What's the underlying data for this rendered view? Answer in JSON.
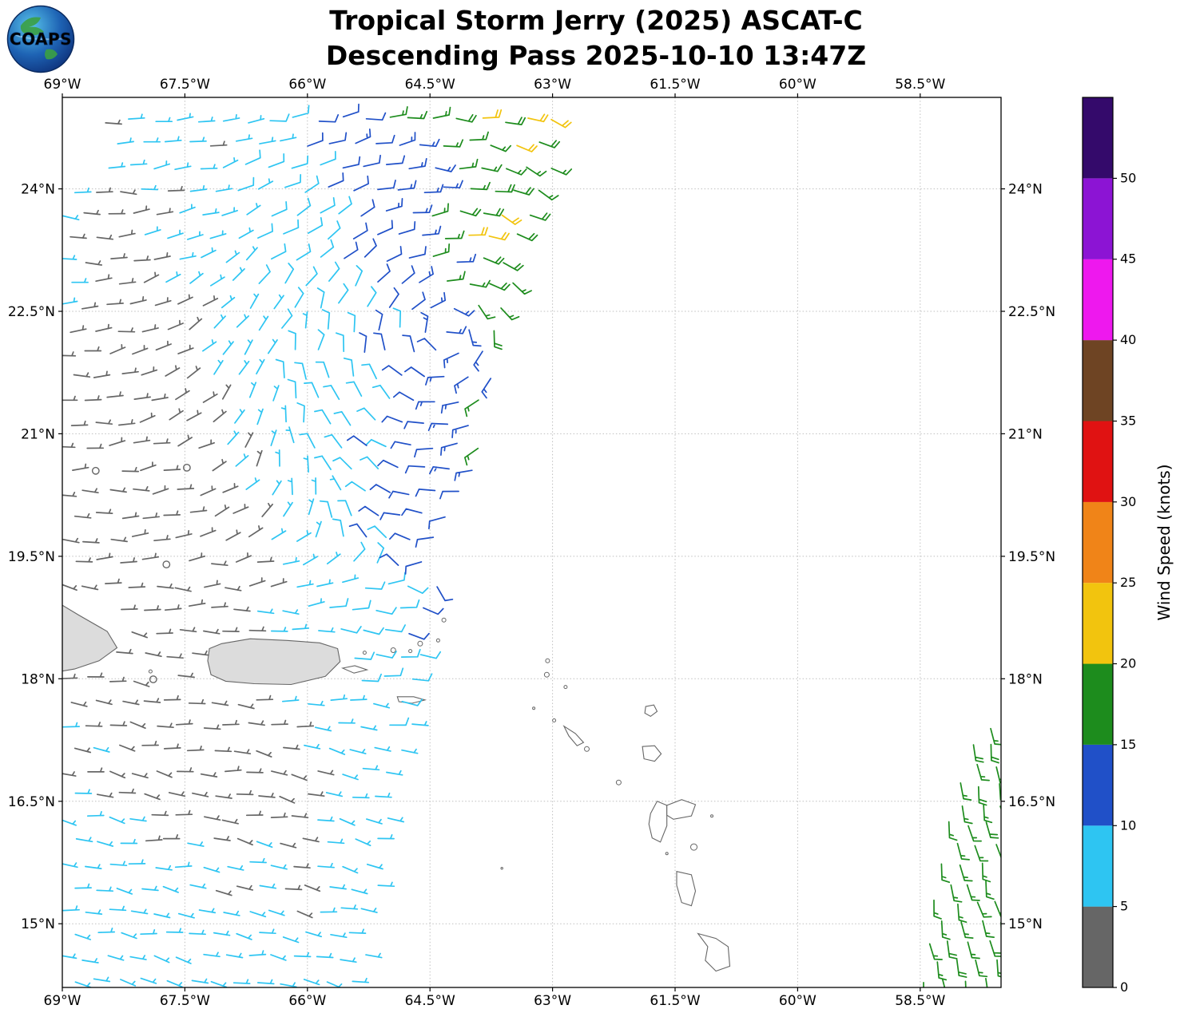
{
  "title": {
    "line1": "Tropical Storm Jerry (2025) ASCAT-C",
    "line2": "Descending Pass 2025-10-10 13:47Z"
  },
  "logo": {
    "text": "COAPS"
  },
  "axes": {
    "xlim": [
      -69.0,
      -57.51
    ],
    "ylim": [
      14.22,
      25.12
    ],
    "x_ticks": [
      {
        "value": -69.0,
        "label": "69°W"
      },
      {
        "value": -67.5,
        "label": "67.5°W"
      },
      {
        "value": -66.0,
        "label": "66°W"
      },
      {
        "value": -64.5,
        "label": "64.5°W"
      },
      {
        "value": -63.0,
        "label": "63°W"
      },
      {
        "value": -61.5,
        "label": "61.5°W"
      },
      {
        "value": -60.0,
        "label": "60°W"
      },
      {
        "value": -58.5,
        "label": "58.5°W"
      }
    ],
    "y_ticks": [
      {
        "value": 24.0,
        "label": "24°N"
      },
      {
        "value": 22.5,
        "label": "22.5°N"
      },
      {
        "value": 21.0,
        "label": "21°N"
      },
      {
        "value": 19.5,
        "label": "19.5°N"
      },
      {
        "value": 18.0,
        "label": "18°N"
      },
      {
        "value": 16.5,
        "label": "16.5°N"
      },
      {
        "value": 15.0,
        "label": "15°N"
      }
    ]
  },
  "colorbar": {
    "label": "Wind Speed (knots)",
    "min": 0,
    "max": 55,
    "ticks": [
      0,
      5,
      10,
      15,
      20,
      25,
      30,
      35,
      40,
      45,
      50
    ],
    "segments": [
      {
        "from": 0,
        "to": 5,
        "color": "#666666"
      },
      {
        "from": 5,
        "to": 10,
        "color": "#2ec5f2"
      },
      {
        "from": 10,
        "to": 15,
        "color": "#2050c8"
      },
      {
        "from": 15,
        "to": 20,
        "color": "#1d8c1d"
      },
      {
        "from": 20,
        "to": 25,
        "color": "#f2c40e"
      },
      {
        "from": 25,
        "to": 30,
        "color": "#f08418"
      },
      {
        "from": 30,
        "to": 35,
        "color": "#e01212"
      },
      {
        "from": 35,
        "to": 40,
        "color": "#6e4423"
      },
      {
        "from": 40,
        "to": 45,
        "color": "#ee18ee"
      },
      {
        "from": 45,
        "to": 50,
        "color": "#8c14d4"
      },
      {
        "from": 50,
        "to": 55,
        "color": "#340a6b"
      }
    ]
  },
  "chart_data": {
    "type": "wind_barb_map",
    "title": "Tropical Storm Jerry (2025) ASCAT-C — Descending Pass 2025-10-10 13:47Z",
    "x": "longitude_deg_east",
    "y": "latitude_deg_north",
    "wind_speed_units": "knots",
    "calm_symbol": "circle_below_2.5_knots",
    "grid": true,
    "legend_position": "right-colorbar",
    "swaths": [
      {
        "name": "main-swath",
        "grid_deg": 0.285,
        "lat_min": 14.3,
        "lat_max": 25.05,
        "left_edge": [
          [
            14.22,
            -69.1
          ],
          [
            23.8,
            -69.1
          ],
          [
            24.35,
            -68.6
          ],
          [
            25.1,
            -68.4
          ]
        ],
        "right_edge": [
          [
            14.22,
            -65.32
          ],
          [
            16.5,
            -64.95
          ],
          [
            18.0,
            -64.55
          ],
          [
            19.5,
            -64.3
          ],
          [
            21.0,
            -63.78
          ],
          [
            22.5,
            -63.5
          ],
          [
            24.0,
            -63.05
          ],
          [
            25.1,
            -62.9
          ]
        ],
        "flow": {
          "type": "cyclonic",
          "center": [
            -64.3,
            22.2
          ],
          "vortex_scale_deg": 3.5,
          "background_to": [
            -0.984,
            0.177
          ]
        },
        "speed_points": [
          [
            -68.6,
            24.8,
            3
          ],
          [
            -67.9,
            24.9,
            6
          ],
          [
            -67.1,
            24.6,
            4
          ],
          [
            -66.3,
            24.8,
            8
          ],
          [
            -65.6,
            24.8,
            12
          ],
          [
            -64.9,
            24.9,
            16
          ],
          [
            -64.2,
            24.9,
            20
          ],
          [
            -63.5,
            24.9,
            22
          ],
          [
            -63.0,
            24.8,
            22
          ],
          [
            -68.4,
            23.7,
            3
          ],
          [
            -67.6,
            23.8,
            4
          ],
          [
            -66.8,
            23.8,
            7
          ],
          [
            -66.0,
            23.7,
            8
          ],
          [
            -65.3,
            23.8,
            11
          ],
          [
            -64.6,
            23.6,
            15
          ],
          [
            -63.9,
            23.45,
            25
          ],
          [
            -63.3,
            23.6,
            21
          ],
          [
            -68.3,
            22.5,
            2
          ],
          [
            -67.4,
            22.5,
            4
          ],
          [
            -66.5,
            22.4,
            7
          ],
          [
            -65.7,
            22.5,
            8
          ],
          [
            -65.0,
            22.5,
            9
          ],
          [
            -64.3,
            22.4,
            13
          ],
          [
            -63.7,
            22.4,
            18
          ],
          [
            -63.2,
            22.5,
            21
          ],
          [
            -68.2,
            21.5,
            2
          ],
          [
            -67.3,
            21.4,
            2
          ],
          [
            -66.4,
            21.5,
            6
          ],
          [
            -65.6,
            21.5,
            8
          ],
          [
            -64.9,
            21.4,
            9
          ],
          [
            -64.2,
            21.5,
            14
          ],
          [
            -63.8,
            21.3,
            19
          ],
          [
            -68.5,
            20.5,
            2
          ],
          [
            -67.5,
            20.5,
            1
          ],
          [
            -66.6,
            20.5,
            4
          ],
          [
            -65.8,
            20.5,
            7
          ],
          [
            -65.1,
            20.4,
            10
          ],
          [
            -64.4,
            20.5,
            14
          ],
          [
            -63.95,
            20.7,
            16
          ],
          [
            -68.7,
            19.5,
            3
          ],
          [
            -67.7,
            19.5,
            1
          ],
          [
            -66.8,
            19.5,
            2
          ],
          [
            -65.9,
            19.5,
            6
          ],
          [
            -65.2,
            19.5,
            11
          ],
          [
            -64.6,
            19.6,
            13
          ],
          [
            -68.8,
            18.7,
            3
          ],
          [
            -67.8,
            18.7,
            2
          ],
          [
            -66.9,
            18.7,
            3
          ],
          [
            -66.1,
            18.7,
            5
          ],
          [
            -65.4,
            18.7,
            10
          ],
          [
            -64.8,
            18.7,
            12
          ],
          [
            -68.9,
            18.0,
            4
          ],
          [
            -67.9,
            18.0,
            2
          ],
          [
            -66.9,
            17.95,
            2
          ],
          [
            -65.4,
            18.1,
            9
          ],
          [
            -64.85,
            18.2,
            11
          ],
          [
            -68.9,
            17.3,
            5
          ],
          [
            -68.0,
            17.3,
            3
          ],
          [
            -67.1,
            17.2,
            3
          ],
          [
            -66.3,
            17.3,
            4
          ],
          [
            -65.6,
            17.3,
            6
          ],
          [
            -65.1,
            17.3,
            7
          ],
          [
            -68.9,
            16.4,
            6
          ],
          [
            -68.0,
            16.4,
            4
          ],
          [
            -67.1,
            16.4,
            3
          ],
          [
            -66.2,
            16.4,
            3
          ],
          [
            -65.5,
            16.5,
            5
          ],
          [
            -65.1,
            16.4,
            6
          ],
          [
            -68.8,
            15.5,
            7
          ],
          [
            -67.8,
            15.5,
            6
          ],
          [
            -66.9,
            15.4,
            5
          ],
          [
            -66.1,
            15.5,
            4
          ],
          [
            -65.4,
            15.5,
            6
          ],
          [
            -68.7,
            14.5,
            7
          ],
          [
            -67.7,
            14.6,
            7
          ],
          [
            -66.7,
            14.5,
            7
          ],
          [
            -65.8,
            14.5,
            7
          ],
          [
            -65.3,
            14.4,
            7
          ]
        ]
      },
      {
        "name": "east-swath-edge",
        "grid_deg": 0.24,
        "lat_min": 14.3,
        "lat_max": 17.6,
        "lon_max": -57.42,
        "left_edge": [
          [
            14.22,
            -58.45
          ],
          [
            15.0,
            -58.35
          ],
          [
            16.5,
            -58.1
          ],
          [
            17.6,
            -57.7
          ]
        ],
        "speed_kt": [
          15,
          18
        ],
        "flow": {
          "type": "uniform",
          "to": [
            -0.2,
            0.98
          ]
        }
      }
    ],
    "land_mask": [
      {
        "lon": [
          -67.3,
          -65.55
        ],
        "lat": [
          17.9,
          18.55
        ]
      },
      {
        "lon": [
          -69.3,
          -68.33
        ],
        "lat": [
          18.02,
          18.98
        ]
      }
    ],
    "islands": {
      "filled": [
        {
          "name": "hispaniola-east",
          "pts": [
            [
              -69.08,
              18.95
            ],
            [
              -68.8,
              18.78
            ],
            [
              -68.45,
              18.58
            ],
            [
              -68.33,
              18.38
            ],
            [
              -68.55,
              18.22
            ],
            [
              -68.85,
              18.12
            ],
            [
              -69.08,
              18.08
            ]
          ]
        },
        {
          "name": "puerto-rico",
          "pts": [
            [
              -67.2,
              18.37
            ],
            [
              -67.05,
              18.43
            ],
            [
              -66.7,
              18.49
            ],
            [
              -66.25,
              18.47
            ],
            [
              -65.85,
              18.44
            ],
            [
              -65.63,
              18.37
            ],
            [
              -65.6,
              18.21
            ],
            [
              -65.78,
              18.03
            ],
            [
              -66.2,
              17.93
            ],
            [
              -66.65,
              17.94
            ],
            [
              -67.0,
              17.97
            ],
            [
              -67.18,
              18.05
            ],
            [
              -67.22,
              18.22
            ]
          ]
        }
      ],
      "outlined": [
        {
          "name": "vieques",
          "pts": [
            [
              -65.57,
              18.13
            ],
            [
              -65.42,
              18.16
            ],
            [
              -65.27,
              18.11
            ],
            [
              -65.43,
              18.07
            ]
          ]
        },
        {
          "name": "st-croix",
          "pts": [
            [
              -64.9,
              17.78
            ],
            [
              -64.7,
              17.78
            ],
            [
              -64.56,
              17.74
            ],
            [
              -64.72,
              17.7
            ],
            [
              -64.88,
              17.72
            ]
          ]
        },
        {
          "name": "st-kitts",
          "pts": [
            [
              -62.86,
              17.42
            ],
            [
              -62.72,
              17.33
            ],
            [
              -62.62,
              17.22
            ],
            [
              -62.7,
              17.18
            ],
            [
              -62.8,
              17.3
            ]
          ]
        },
        {
          "name": "antigua",
          "pts": [
            [
              -61.9,
              17.17
            ],
            [
              -61.75,
              17.18
            ],
            [
              -61.67,
              17.08
            ],
            [
              -61.75,
              16.99
            ],
            [
              -61.88,
              17.02
            ]
          ]
        },
        {
          "name": "barbuda",
          "pts": [
            [
              -61.86,
              17.66
            ],
            [
              -61.76,
              17.68
            ],
            [
              -61.72,
              17.6
            ],
            [
              -61.8,
              17.54
            ],
            [
              -61.87,
              17.58
            ]
          ]
        },
        {
          "name": "guadeloupe-basse-terre",
          "pts": [
            [
              -61.8,
              16.35
            ],
            [
              -61.72,
              16.5
            ],
            [
              -61.6,
              16.45
            ],
            [
              -61.6,
              16.2
            ],
            [
              -61.68,
              16.0
            ],
            [
              -61.78,
              16.05
            ],
            [
              -61.82,
              16.22
            ]
          ]
        },
        {
          "name": "guadeloupe-grande-terre",
          "pts": [
            [
              -61.6,
              16.45
            ],
            [
              -61.42,
              16.52
            ],
            [
              -61.25,
              16.46
            ],
            [
              -61.3,
              16.32
            ],
            [
              -61.52,
              16.28
            ],
            [
              -61.6,
              16.33
            ]
          ]
        },
        {
          "name": "dominica",
          "pts": [
            [
              -61.48,
              15.64
            ],
            [
              -61.3,
              15.6
            ],
            [
              -61.25,
              15.4
            ],
            [
              -61.3,
              15.22
            ],
            [
              -61.42,
              15.26
            ],
            [
              -61.48,
              15.47
            ]
          ]
        },
        {
          "name": "martinique",
          "pts": [
            [
              -61.22,
              14.88
            ],
            [
              -61.0,
              14.82
            ],
            [
              -60.85,
              14.72
            ],
            [
              -60.83,
              14.48
            ],
            [
              -61.0,
              14.42
            ],
            [
              -61.13,
              14.55
            ],
            [
              -61.1,
              14.72
            ]
          ]
        }
      ],
      "dots": [
        {
          "name": "mona",
          "lon": -67.92,
          "lat": 18.09,
          "r": 2
        },
        {
          "name": "culebra",
          "lon": -65.3,
          "lat": 18.32,
          "r": 2
        },
        {
          "name": "st-thomas",
          "lon": -64.95,
          "lat": 18.35,
          "r": 3
        },
        {
          "name": "st-john",
          "lon": -64.74,
          "lat": 18.34,
          "r": 2
        },
        {
          "name": "tortola",
          "lon": -64.62,
          "lat": 18.43,
          "r": 3
        },
        {
          "name": "virgin-gorda",
          "lon": -64.4,
          "lat": 18.47,
          "r": 2
        },
        {
          "name": "anegada",
          "lon": -64.33,
          "lat": 18.72,
          "r": 2.5
        },
        {
          "name": "anguilla",
          "lon": -63.06,
          "lat": 18.22,
          "r": 2.5
        },
        {
          "name": "st-martin",
          "lon": -63.07,
          "lat": 18.05,
          "r": 3
        },
        {
          "name": "st-barthelemy",
          "lon": -62.84,
          "lat": 17.9,
          "r": 2
        },
        {
          "name": "saba",
          "lon": -63.23,
          "lat": 17.64,
          "r": 1.5
        },
        {
          "name": "st-eustatius",
          "lon": -62.98,
          "lat": 17.49,
          "r": 2
        },
        {
          "name": "nevis",
          "lon": -62.58,
          "lat": 17.14,
          "r": 3
        },
        {
          "name": "montserrat",
          "lon": -62.19,
          "lat": 16.73,
          "r": 3
        },
        {
          "name": "la-desirade",
          "lon": -61.05,
          "lat": 16.32,
          "r": 1.5
        },
        {
          "name": "marie-galante",
          "lon": -61.27,
          "lat": 15.94,
          "r": 4
        },
        {
          "name": "les-saintes",
          "lon": -61.6,
          "lat": 15.86,
          "r": 1.5
        },
        {
          "name": "aves-island",
          "lon": -63.62,
          "lat": 15.68,
          "r": 1.2
        }
      ]
    },
    "style": {
      "grid_color": "#bfbfbf",
      "coast_color": "#666666",
      "land_fill": "#dcdcdc",
      "frame_color": "#000000"
    }
  }
}
